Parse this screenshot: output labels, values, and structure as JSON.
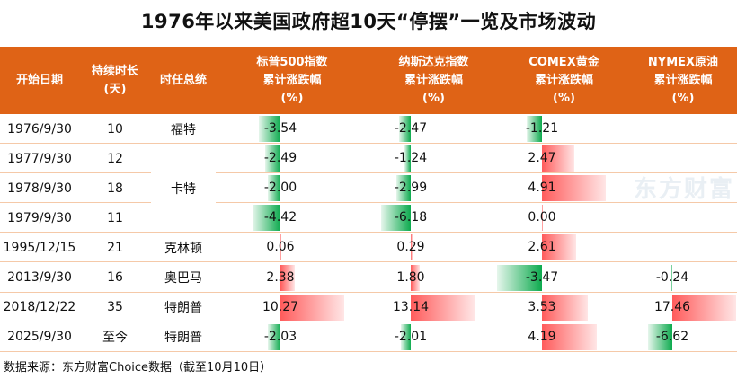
{
  "title": "1976年以来美国政府超10天“停摆”一览及市场波动",
  "watermark": "东方财富",
  "footnote": "数据来源：东方财富Choice数据（截至10月10日）",
  "colors": {
    "header": "#DF6316",
    "positive": "#FF5B5B",
    "negative": "#0DAA4E",
    "grid": "#F5C9A8"
  },
  "chart_data": {
    "type": "table",
    "title": "1976年以来美国政府超10天“停摆”一览及市场波动",
    "columns": [
      "开始日期",
      "持续时长\n(天)",
      "时任总统",
      "标普500指数\n累计涨跌幅\n(%)",
      "纳斯达克指数\n累计涨跌幅\n(%)",
      "COMEX黄金\n累计涨跌幅\n(%)",
      "NYMEX原油\n累计涨跌幅\n(%)"
    ],
    "rows": [
      {
        "date": "1976/9/30",
        "days": "10",
        "president": "福特",
        "sp500": "-3.54",
        "nasdaq": "-2.47",
        "gold": "-1.21",
        "oil": ""
      },
      {
        "date": "1977/9/30",
        "days": "12",
        "president": "卡特",
        "sp500": "-2.49",
        "nasdaq": "-1.24",
        "gold": "2.47",
        "oil": ""
      },
      {
        "date": "1978/9/30",
        "days": "18",
        "president": "卡特",
        "sp500": "-2.00",
        "nasdaq": "-2.99",
        "gold": "4.91",
        "oil": ""
      },
      {
        "date": "1979/9/30",
        "days": "11",
        "president": "卡特",
        "sp500": "-4.42",
        "nasdaq": "-6.18",
        "gold": "0.00",
        "oil": ""
      },
      {
        "date": "1995/12/15",
        "days": "21",
        "president": "克林顿",
        "sp500": "0.06",
        "nasdaq": "0.29",
        "gold": "2.61",
        "oil": ""
      },
      {
        "date": "2013/9/30",
        "days": "16",
        "president": "奥巴马",
        "sp500": "2.38",
        "nasdaq": "1.80",
        "gold": "-3.47",
        "oil": "-0.24"
      },
      {
        "date": "2018/12/22",
        "days": "35",
        "president": "特朗普",
        "sp500": "10.27",
        "nasdaq": "13.14",
        "gold": "3.53",
        "oil": "17.46"
      },
      {
        "date": "2025/9/30",
        "days": "至今",
        "president": "特朗普",
        "sp500": "-2.03",
        "nasdaq": "-2.01",
        "gold": "4.19",
        "oil": "-6.62"
      }
    ],
    "merged_president": "卡特"
  }
}
